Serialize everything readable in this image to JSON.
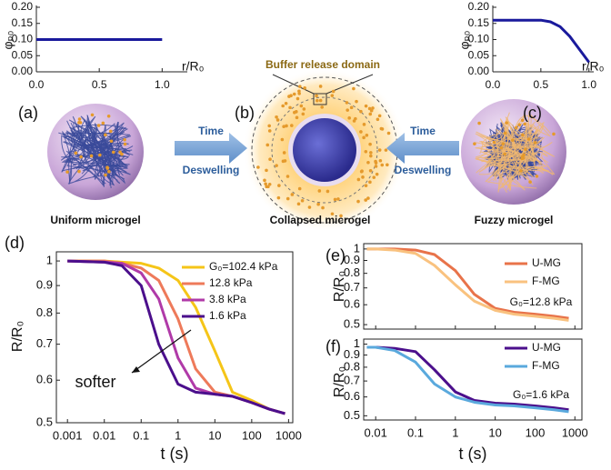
{
  "figure": {
    "panels": [
      "(a)",
      "(b)",
      "(c)",
      "(d)",
      "(e)",
      "(f)"
    ],
    "arrows": [
      {
        "top": "Time",
        "bottom": "Deswelling"
      },
      {
        "top": "Time",
        "bottom": "Deswelling"
      }
    ],
    "buffer_label": "Buffer release domain",
    "captions": [
      "Uniform microgel",
      "Collapsed microgel",
      "Fuzzy microgel"
    ]
  },
  "chart_data": [
    {
      "type": "line",
      "x_label": "r/R₀",
      "y_label": "φₚ₀",
      "x": [
        0,
        1
      ],
      "values": [
        0.1,
        0.1
      ],
      "color": "#1a1a9c",
      "xlim": [
        0,
        1.2
      ],
      "xticks": [
        {
          "value": 0,
          "label": "0.0"
        },
        {
          "value": 0.5,
          "label": "0.5"
        },
        {
          "value": 1,
          "label": "1.0"
        }
      ],
      "ylim": [
        0,
        0.2
      ],
      "yticks": [
        {
          "value": 0,
          "label": "0.00"
        },
        {
          "value": 0.05,
          "label": "0.05"
        },
        {
          "value": 0.1,
          "label": "0.10"
        },
        {
          "value": 0.15,
          "label": "0.15"
        },
        {
          "value": 0.2,
          "label": "0.20"
        }
      ]
    },
    {
      "type": "line",
      "x_label": "r/R₀",
      "y_label": "φₚ₀",
      "x": [
        0,
        0.1,
        0.2,
        0.3,
        0.4,
        0.5,
        0.6,
        0.7,
        0.8,
        0.9,
        1
      ],
      "values": [
        0.16,
        0.16,
        0.16,
        0.16,
        0.16,
        0.16,
        0.155,
        0.14,
        0.11,
        0.07,
        0.03
      ],
      "color": "#1a1a9c",
      "xlim": [
        0,
        1.05
      ],
      "xticks": [
        {
          "value": 0,
          "label": "0.0"
        },
        {
          "value": 0.5,
          "label": "0.5"
        },
        {
          "value": 1,
          "label": "1.0"
        }
      ],
      "ylim": [
        0,
        0.2
      ],
      "yticks": [
        {
          "value": 0,
          "label": "0.00"
        },
        {
          "value": 0.05,
          "label": "0.05"
        },
        {
          "value": 0.1,
          "label": "0.10"
        },
        {
          "value": 0.15,
          "label": "0.15"
        },
        {
          "value": 0.2,
          "label": "0.20"
        }
      ]
    },
    {
      "type": "line",
      "x_label": "t  (s)",
      "y_label": "R/R₀",
      "xlog": true,
      "ylog": true,
      "annotations": [
        "softer"
      ],
      "x": [
        0.001,
        0.01,
        0.03,
        0.1,
        0.3,
        1,
        3,
        10,
        30,
        100,
        300,
        800
      ],
      "series": [
        {
          "name": "G₀=102.4 kPa",
          "color": "#f5c518",
          "values": [
            1,
            1,
            0.995,
            0.99,
            0.97,
            0.92,
            0.82,
            0.68,
            0.57,
            0.55,
            0.53,
            0.52
          ]
        },
        {
          "name": "12.8 kPa",
          "color": "#ee7a5a",
          "values": [
            1,
            1,
            0.99,
            0.97,
            0.92,
            0.78,
            0.63,
            0.57,
            0.56,
            0.545,
            0.53,
            0.52
          ]
        },
        {
          "name": "3.8 kPa",
          "color": "#b03aa8",
          "values": [
            1,
            0.995,
            0.99,
            0.95,
            0.85,
            0.66,
            0.58,
            0.565,
            0.56,
            0.545,
            0.53,
            0.52
          ]
        },
        {
          "name": "1.6 kPa",
          "color": "#4b0f8c",
          "values": [
            1,
            0.995,
            0.98,
            0.9,
            0.7,
            0.59,
            0.57,
            0.565,
            0.56,
            0.545,
            0.53,
            0.52
          ]
        }
      ],
      "xlim": [
        0.0005,
        1300
      ],
      "xticks": [
        0.001,
        0.01,
        0.1,
        1,
        10,
        100,
        1000
      ],
      "ylim": [
        0.5,
        1.04
      ],
      "yticks": [
        0.5,
        0.6,
        0.7,
        0.8,
        0.9,
        1
      ]
    },
    {
      "type": "line",
      "y_label": "R/R₀",
      "xlog": true,
      "ylog": true,
      "annotations": [
        "G₀=12.8 kPa"
      ],
      "x": [
        0.006,
        0.01,
        0.03,
        0.1,
        0.3,
        1,
        3,
        10,
        30,
        100,
        300,
        700
      ],
      "series": [
        {
          "name": "U-MG",
          "color": "#e8734a",
          "values": [
            1,
            1,
            1,
            0.99,
            0.95,
            0.82,
            0.66,
            0.58,
            0.56,
            0.55,
            0.54,
            0.53
          ]
        },
        {
          "name": "F-MG",
          "color": "#f9c27f",
          "values": [
            1,
            1,
            0.99,
            0.96,
            0.86,
            0.72,
            0.62,
            0.57,
            0.55,
            0.54,
            0.53,
            0.52
          ]
        }
      ],
      "xlim": [
        0.005,
        1500
      ],
      "xticks": [
        0.01,
        0.1,
        1,
        10,
        100,
        1000
      ],
      "ylim": [
        0.48,
        1.05
      ],
      "yticks": [
        0.5,
        0.6,
        0.7,
        0.8,
        0.9,
        1
      ]
    },
    {
      "type": "line",
      "x_label": "t  (s)",
      "y_label": "R/R₀",
      "xlog": true,
      "ylog": true,
      "annotations": [
        "G₀=1.6 kPa"
      ],
      "x": [
        0.006,
        0.01,
        0.03,
        0.1,
        0.3,
        1,
        3,
        10,
        30,
        100,
        300,
        700
      ],
      "series": [
        {
          "name": "U-MG",
          "color": "#4b0f8c",
          "values": [
            0.97,
            0.97,
            0.96,
            0.93,
            0.78,
            0.63,
            0.58,
            0.565,
            0.56,
            0.55,
            0.54,
            0.53
          ]
        },
        {
          "name": "F-MG",
          "color": "#5aa9dd",
          "values": [
            0.97,
            0.97,
            0.94,
            0.84,
            0.68,
            0.6,
            0.57,
            0.555,
            0.55,
            0.54,
            0.53,
            0.52
          ]
        }
      ],
      "xlim": [
        0.005,
        1500
      ],
      "xticks": [
        0.01,
        0.1,
        1,
        10,
        100,
        1000
      ],
      "ylim": [
        0.48,
        1.05
      ],
      "yticks": [
        0.5,
        0.6,
        0.7,
        0.8,
        0.9,
        1
      ]
    }
  ]
}
